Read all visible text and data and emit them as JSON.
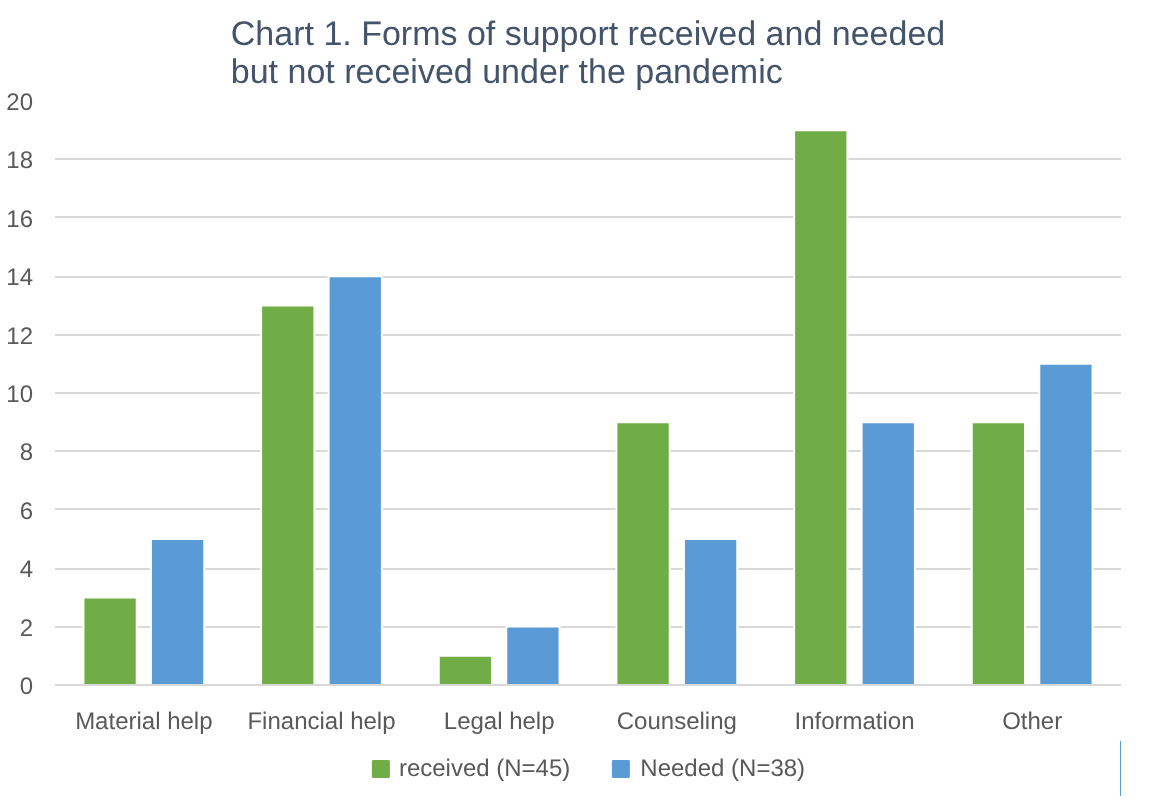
{
  "chart_data": {
    "type": "bar",
    "title": "Chart 1. Forms of support received and needed\nbut not received under the pandemic",
    "categories": [
      "Material help",
      "Financial help",
      "Legal help",
      "Counseling",
      "Information",
      "Other"
    ],
    "series": [
      {
        "name": "received (N=45)",
        "color": "#70ad47",
        "values": [
          3,
          13,
          1,
          9,
          19,
          9
        ]
      },
      {
        "name": "Needed (N=38)",
        "color": "#5b9bd5",
        "values": [
          5,
          14,
          2,
          5,
          9,
          11
        ]
      }
    ],
    "ylim": [
      0,
      20
    ],
    "yticks": [
      0,
      2,
      4,
      6,
      8,
      10,
      12,
      14,
      16,
      18,
      20
    ],
    "grid": "y",
    "legend": "bottom"
  }
}
